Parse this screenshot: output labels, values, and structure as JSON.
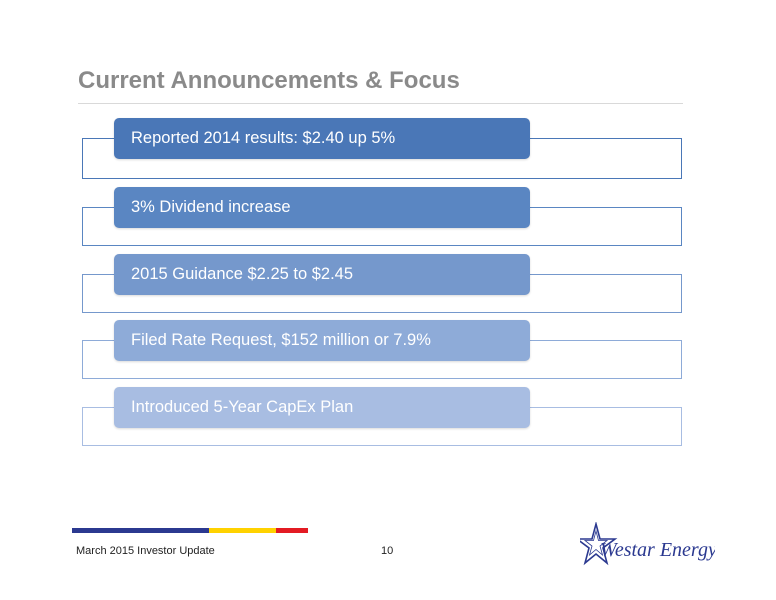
{
  "slide": {
    "title": "Current Announcements & Focus",
    "items": [
      {
        "label": "Reported 2014 results: $2.40 up 5%"
      },
      {
        "label": "3% Dividend increase"
      },
      {
        "label": "2015 Guidance $2.25 to $2.45"
      },
      {
        "label": "Filed Rate Request, $152 million or 7.9%"
      },
      {
        "label": "Introduced 5-Year CapEx Plan"
      }
    ]
  },
  "colors": {
    "pills": [
      "#4a77b7",
      "#5a86c2",
      "#7598cc",
      "#8eabd8",
      "#a8bde2"
    ],
    "frames": [
      "#4a77b7",
      "#5a86c2",
      "#7598cc",
      "#8eabd8",
      "#a8bde2"
    ],
    "footer_stripe": [
      "#2b3990",
      "#ffd200",
      "#e31b23"
    ]
  },
  "footer": {
    "left_text": "March 2015 Investor Update",
    "page_number": "10"
  },
  "logo": {
    "icon": "star-icon",
    "text": "Westar Energy."
  }
}
